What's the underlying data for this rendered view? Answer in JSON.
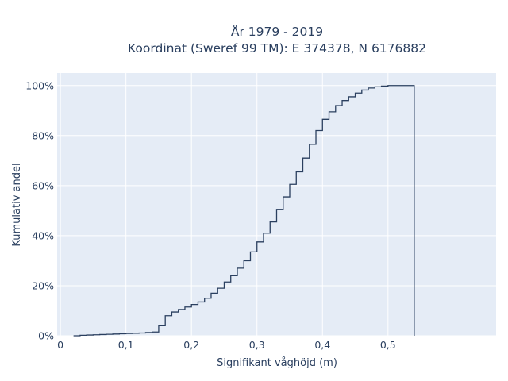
{
  "chart_data": {
    "type": "line",
    "line_shape": "step",
    "title_lines": [
      "År 1979 - 2019",
      "Koordinat (Sweref 99 TM): E 374378, N 6176882"
    ],
    "xlabel": "Signifikant våghöjd (m)",
    "ylabel": "Kumulativ andel",
    "xlim": [
      -0.005,
      0.665
    ],
    "ylim": [
      0,
      1.05
    ],
    "x_ticks": [
      0,
      0.1,
      0.2,
      0.3,
      0.4,
      0.5
    ],
    "x_tick_labels": [
      "0",
      "0,1",
      "0,2",
      "0,3",
      "0,4",
      "0,5"
    ],
    "y_ticks": [
      0,
      0.2,
      0.4,
      0.6,
      0.8,
      1.0
    ],
    "y_tick_labels": [
      "0%",
      "20%",
      "40%",
      "60%",
      "80%",
      "100%"
    ],
    "grid": true,
    "legend": "none",
    "colors": {
      "plot_bg": "#e5ecf6",
      "grid": "#ffffff",
      "line": "#2a3f5f",
      "text": "#2a3f5f"
    },
    "series": [
      {
        "x": [
          0.02,
          0.03,
          0.04,
          0.05,
          0.06,
          0.07,
          0.08,
          0.09,
          0.1,
          0.11,
          0.12,
          0.13,
          0.14,
          0.15,
          0.16,
          0.17,
          0.18,
          0.19,
          0.2,
          0.21,
          0.22,
          0.23,
          0.24,
          0.25,
          0.26,
          0.27,
          0.28,
          0.29,
          0.3,
          0.31,
          0.32,
          0.33,
          0.34,
          0.35,
          0.36,
          0.37,
          0.38,
          0.39,
          0.4,
          0.41,
          0.42,
          0.43,
          0.44,
          0.45,
          0.46,
          0.47,
          0.48,
          0.49,
          0.5,
          0.51,
          0.52,
          0.53,
          0.54,
          0.54
        ],
        "y": [
          0.0,
          0.002,
          0.003,
          0.004,
          0.005,
          0.006,
          0.007,
          0.008,
          0.009,
          0.01,
          0.011,
          0.013,
          0.015,
          0.04,
          0.08,
          0.095,
          0.105,
          0.115,
          0.125,
          0.135,
          0.15,
          0.17,
          0.19,
          0.215,
          0.24,
          0.27,
          0.3,
          0.335,
          0.375,
          0.41,
          0.455,
          0.505,
          0.555,
          0.605,
          0.655,
          0.71,
          0.765,
          0.82,
          0.865,
          0.895,
          0.92,
          0.94,
          0.955,
          0.97,
          0.982,
          0.99,
          0.995,
          0.998,
          1.0,
          1.0,
          1.0,
          1.0,
          1.0,
          0.0
        ]
      }
    ]
  }
}
